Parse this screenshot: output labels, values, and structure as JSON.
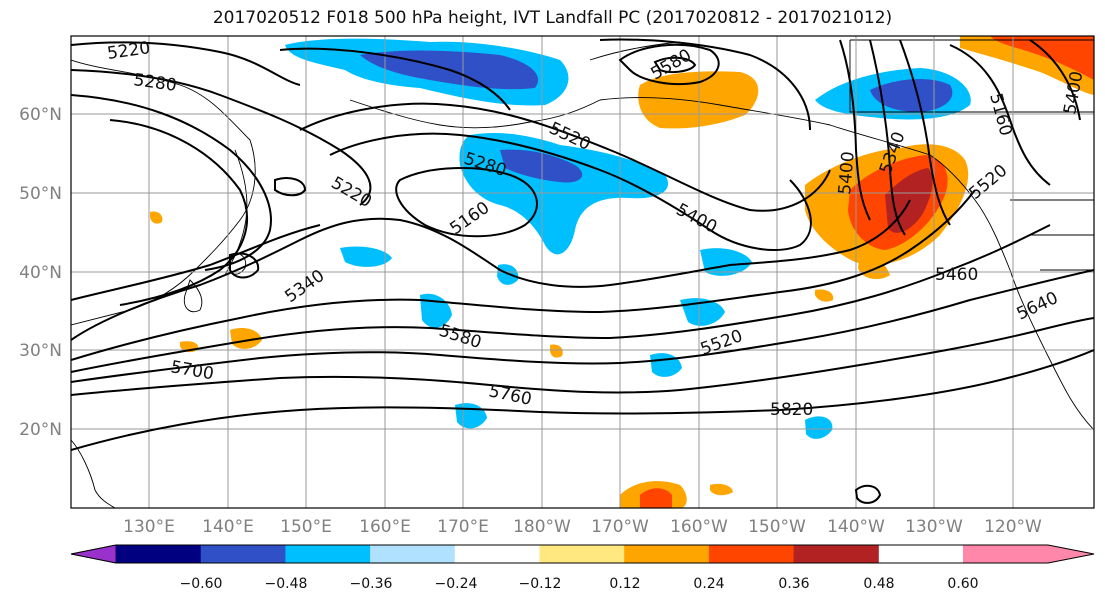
{
  "title": "2017020512 F018 500 hPa height, IVT Landfall PC (2017020812 - 2017021012)",
  "lat_labels": [
    "60°N",
    "50°N",
    "40°N",
    "30°N",
    "20°N"
  ],
  "lon_labels": [
    "130°E",
    "140°E",
    "150°E",
    "160°E",
    "170°E",
    "180°W",
    "170°W",
    "160°W",
    "150°W",
    "140°W",
    "130°W",
    "120°W"
  ],
  "contour_labels": [
    "5220",
    "5280",
    "5520",
    "5280",
    "5220",
    "5160",
    "5400",
    "5340",
    "5580",
    "5700",
    "5760",
    "5820",
    "5520",
    "5460",
    "5640",
    "5400",
    "5340",
    "5580",
    "5160",
    "5520",
    "5400"
  ],
  "colorbar": {
    "ticks": [
      "−0.60",
      "−0.48",
      "−0.36",
      "−0.24",
      "−0.12",
      "0.12",
      "0.24",
      "0.36",
      "0.48",
      "0.60"
    ],
    "colors": [
      "#9932cc",
      "#000080",
      "#3050c8",
      "#00bfff",
      "#b0e2ff",
      "#ffffff",
      "#ffe880",
      "#ffa500",
      "#ff4500",
      "#b22222",
      "#ff88aa"
    ]
  }
}
